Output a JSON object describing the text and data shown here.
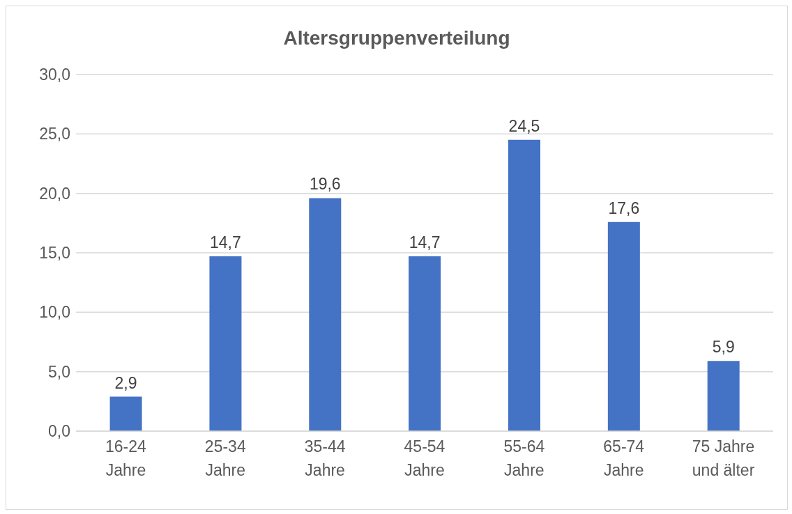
{
  "chart_data": {
    "type": "bar",
    "title": "Altersgruppenverteilung",
    "categories": [
      "16-24 Jahre",
      "25-34 Jahre",
      "35-44 Jahre",
      "45-54 Jahre",
      "55-64 Jahre",
      "65-74 Jahre",
      "75 Jahre und älter"
    ],
    "values": [
      2.9,
      14.7,
      19.6,
      14.7,
      24.5,
      17.6,
      5.9
    ],
    "value_labels": [
      "2,9",
      "14,7",
      "19,6",
      "14,7",
      "24,5",
      "17,6",
      "5,9"
    ],
    "color": "#4472c4",
    "ylim": [
      0,
      30
    ],
    "yticks": [
      {
        "value": 0,
        "label": "0,0"
      },
      {
        "value": 5,
        "label": "5,0"
      },
      {
        "value": 10,
        "label": "10,0"
      },
      {
        "value": 15,
        "label": "15,0"
      },
      {
        "value": 20,
        "label": "20,0"
      },
      {
        "value": 25,
        "label": "25,0"
      },
      {
        "value": 30,
        "label": "30,0"
      }
    ],
    "grid": "y",
    "legend": false
  }
}
